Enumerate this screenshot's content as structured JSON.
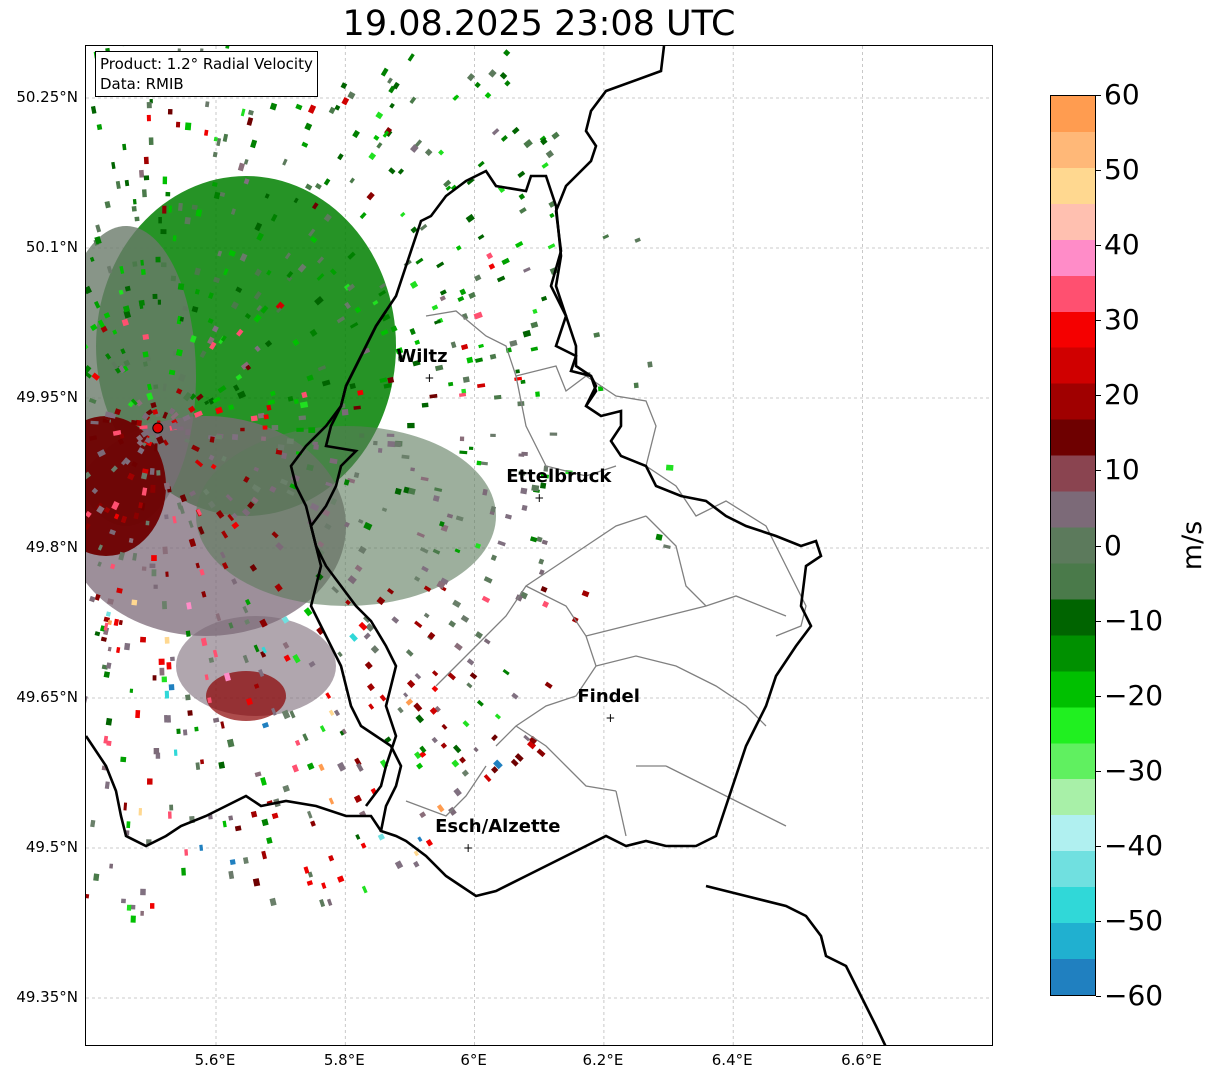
{
  "title": "19.08.2025 23:08 UTC",
  "info": {
    "product": "Product: 1.2° Radial Velocity",
    "source": "Data: RMIB"
  },
  "axes": {
    "lat_ticks": [
      "50.25°N",
      "50.1°N",
      "49.95°N",
      "49.8°N",
      "49.65°N",
      "49.5°N",
      "49.35°N"
    ],
    "lon_ticks": [
      "5.6°E",
      "5.8°E",
      "6°E",
      "6.2°E",
      "6.4°E",
      "6.6°E"
    ],
    "lat_values": [
      50.25,
      50.1,
      49.95,
      49.8,
      49.65,
      49.5,
      49.35
    ],
    "lon_values": [
      5.6,
      5.8,
      6.0,
      6.2,
      6.4,
      6.6
    ],
    "grid": true
  },
  "cities": [
    {
      "name": "Wiltz",
      "lon": 5.93,
      "lat": 49.97
    },
    {
      "name": "Ettelbruck",
      "lon": 6.1,
      "lat": 49.85
    },
    {
      "name": "Findel",
      "lon": 6.21,
      "lat": 49.63
    },
    {
      "name": "Esch/Alzette",
      "lon": 5.99,
      "lat": 49.5
    }
  ],
  "radar_site": {
    "lon": 5.51,
    "lat": 49.92
  },
  "colorbar": {
    "unit": "m/s",
    "min": -60,
    "max": 60,
    "tick_labels": [
      "60",
      "50",
      "40",
      "30",
      "20",
      "10",
      "0",
      "−10",
      "−20",
      "−30",
      "−40",
      "−50",
      "−60"
    ],
    "colors_top_to_bottom": [
      "#ff9c50",
      "#ffb878",
      "#ffd890",
      "#ffc0b0",
      "#ff8cc8",
      "#ff5070",
      "#f50000",
      "#d00000",
      "#a00000",
      "#6e0000",
      "#8a4450",
      "#7c6a78",
      "#5c7a5c",
      "#4a7a4a",
      "#006400",
      "#009000",
      "#00c000",
      "#20f020",
      "#60f060",
      "#a8f0a8",
      "#b0f0f0",
      "#70e0e0",
      "#30d8d8",
      "#20b0d0",
      "#2080c0"
    ]
  }
}
